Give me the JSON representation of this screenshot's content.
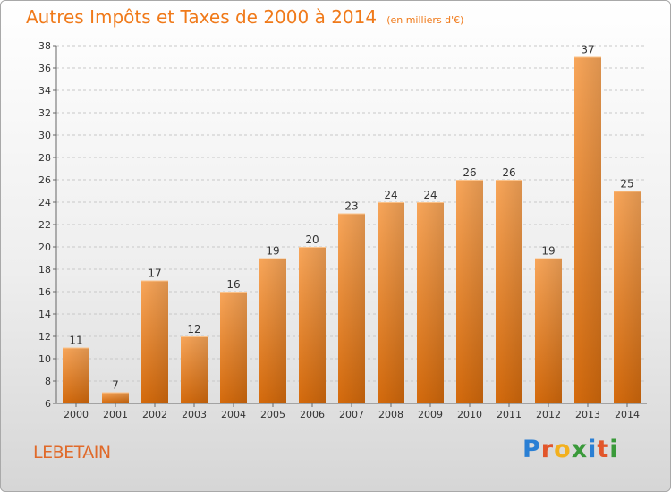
{
  "chart_data": {
    "type": "bar",
    "title": "Autres Impôts et Taxes de 2000 à 2014",
    "unit": "(en milliers d'€)",
    "categories": [
      "2000",
      "2001",
      "2002",
      "2003",
      "2004",
      "2005",
      "2006",
      "2007",
      "2008",
      "2009",
      "2010",
      "2011",
      "2012",
      "2013",
      "2014"
    ],
    "values": [
      11,
      7,
      17,
      12,
      16,
      19,
      20,
      23,
      24,
      24,
      26,
      26,
      19,
      37,
      25
    ],
    "ylim": [
      6,
      38
    ],
    "yticks": [
      6,
      8,
      10,
      12,
      14,
      16,
      18,
      20,
      22,
      24,
      26,
      28,
      30,
      32,
      34,
      36,
      38
    ],
    "grid": "horizontal-dashed",
    "bar_color": "#f28c28"
  },
  "commune": "LEBETAIN",
  "logo": {
    "text": "Proxiti",
    "letters": [
      {
        "char": "P",
        "color": "#2a7fd4"
      },
      {
        "char": "r",
        "color": "#e2562b"
      },
      {
        "char": "o",
        "color": "#f2b01e"
      },
      {
        "char": "x",
        "color": "#3a9a3a"
      },
      {
        "char": "i",
        "color": "#2a7fd4"
      },
      {
        "char": "t",
        "color": "#e2562b"
      },
      {
        "char": "i",
        "color": "#3a9a3a"
      }
    ]
  }
}
